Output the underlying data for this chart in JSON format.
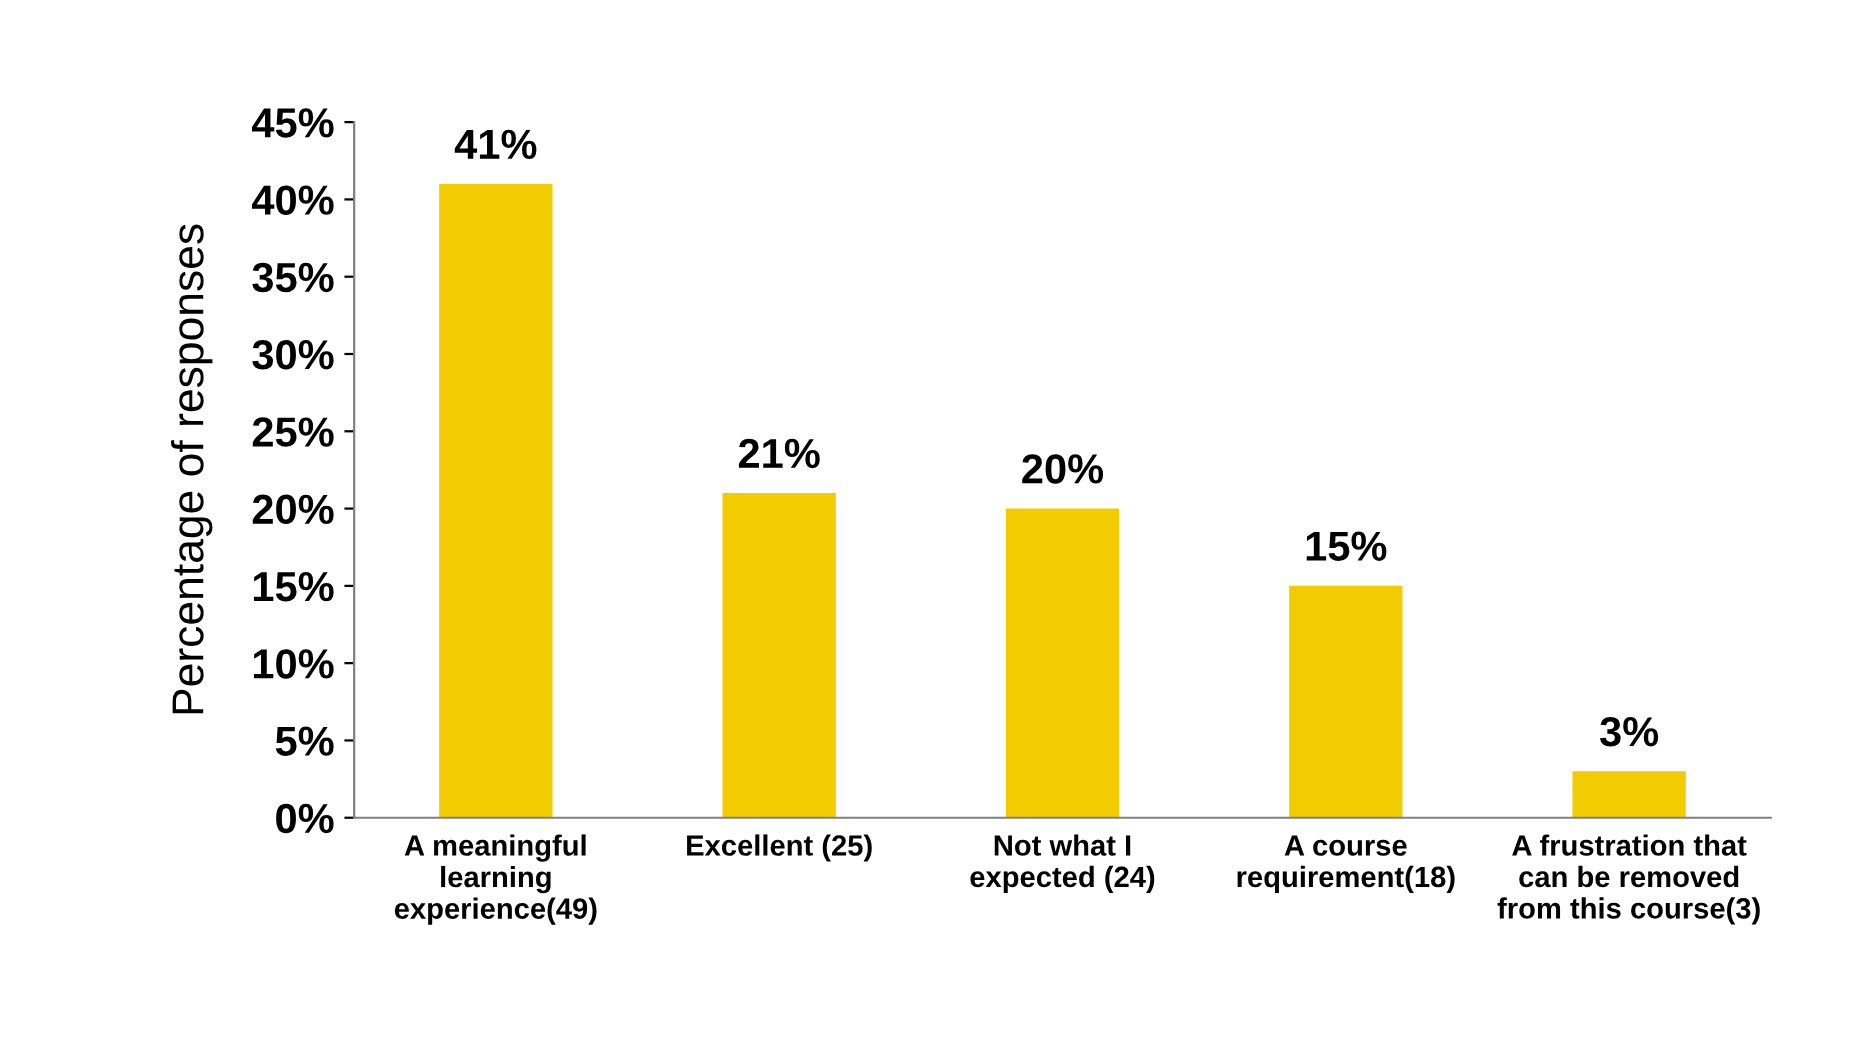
{
  "chart_data": {
    "type": "bar",
    "ylabel": "Percentage of responses",
    "categories": [
      "A meaningful\nlearning\nexperience(49)",
      "Excellent (25)",
      "Not what I\nexpected (24)",
      "A course\nrequirement(18)",
      "A frustration that\ncan be removed\nfrom this course(3)"
    ],
    "values": [
      41,
      21,
      20,
      15,
      3
    ],
    "value_labels": [
      "41%",
      "21%",
      "20%",
      "15%",
      "3%"
    ],
    "color": "#f2cc00",
    "ylim": [
      0,
      45
    ],
    "yticks": [
      {
        "value": 0,
        "label": "0%"
      },
      {
        "value": 5,
        "label": "5%"
      },
      {
        "value": 10,
        "label": "10%"
      },
      {
        "value": 15,
        "label": "15%"
      },
      {
        "value": 20,
        "label": "20%"
      },
      {
        "value": 25,
        "label": "25%"
      },
      {
        "value": 30,
        "label": "30%"
      },
      {
        "value": 35,
        "label": "35%"
      },
      {
        "value": 40,
        "label": "40%"
      },
      {
        "value": 45,
        "label": "45%"
      }
    ],
    "grid": false
  }
}
